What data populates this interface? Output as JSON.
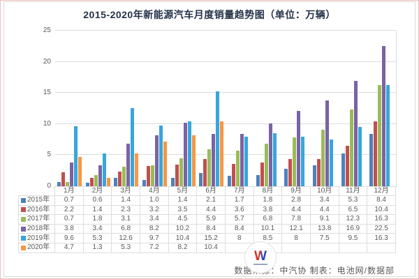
{
  "title": "2015-2020年新能源汽车月度销量趋势图（单位：万辆）",
  "footer": {
    "credit": "数据来源：中汽协  制表：电池网/数据部",
    "watermark_letter": "W"
  },
  "colors": {
    "frame_border": "#f0bcbc",
    "grid": "#dcdcdc",
    "axis_text": "#595959",
    "title_text": "#233248"
  },
  "chart_data": {
    "type": "bar",
    "title": "2015-2020年新能源汽车月度销量趋势图（单位：万辆）",
    "xlabel": "",
    "ylabel": "",
    "ylim": [
      0,
      25
    ],
    "yticks": [
      0,
      5,
      10,
      15,
      20,
      25
    ],
    "grid": true,
    "legend_position": "table-left",
    "categories": [
      "1月",
      "2月",
      "3月",
      "4月",
      "5月",
      "6月",
      "7月",
      "8月",
      "9月",
      "10月",
      "11月",
      "12月"
    ],
    "series": [
      {
        "name": "2015年",
        "color": "#4E81BD",
        "values": [
          "0.7",
          "0.6",
          "1.4",
          "1.0",
          "1.4",
          "2.1",
          "1.7",
          "1.8",
          "2.8",
          "3.4",
          "5.3",
          "8.4"
        ]
      },
      {
        "name": "2016年",
        "color": "#C0504D",
        "values": [
          "2.2",
          "1.4",
          "2.3",
          "3.2",
          "3.5",
          "4.4",
          "3.6",
          "3.8",
          "4.4",
          "4.4",
          "6.5",
          "10.4"
        ]
      },
      {
        "name": "2017年",
        "color": "#9BBB59",
        "values": [
          "0.7",
          "1.8",
          "3.1",
          "3.4",
          "4.5",
          "5.9",
          "5.7",
          "6.8",
          "7.8",
          "9.1",
          "12.3",
          "16.3"
        ]
      },
      {
        "name": "2018年",
        "color": "#7A63A5",
        "values": [
          "3.8",
          "3.4",
          "6.8",
          "8.2",
          "10.2",
          "8.4",
          "8.4",
          "10.1",
          "12.1",
          "13.8",
          "16.9",
          "22.5"
        ]
      },
      {
        "name": "2019年",
        "color": "#38A6D8",
        "values": [
          "9.6",
          "5.3",
          "12.6",
          "9.7",
          "10.4",
          "15.2",
          "8",
          "8.5",
          "8",
          "7.5",
          "9.5",
          "16.3"
        ]
      },
      {
        "name": "2020年",
        "color": "#F79646",
        "values": [
          "4.7",
          "1.3",
          "5.3",
          "7.2",
          "8.2",
          "10.4",
          "",
          "",
          "",
          "",
          "",
          ""
        ]
      }
    ]
  }
}
